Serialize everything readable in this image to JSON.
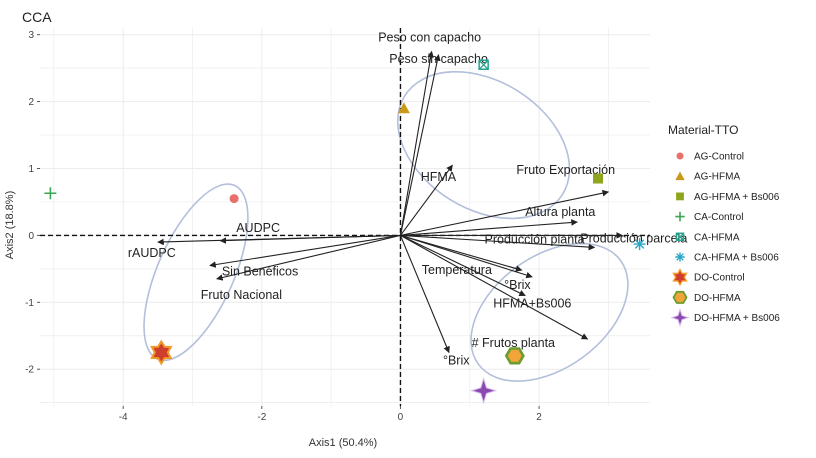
{
  "chart_data": {
    "type": "scatter",
    "title": "CCA",
    "xlabel": "Axis1 (50.4%)",
    "ylabel": "Axis2 (18.8%)",
    "xlim": [
      -5.2,
      3.6
    ],
    "ylim": [
      -2.55,
      3.1
    ],
    "x_ticks": [
      -4,
      -2,
      0,
      2
    ],
    "y_ticks": [
      -2,
      -1,
      0,
      1,
      2,
      3
    ],
    "grid": true,
    "legend_title": "Material-TTO",
    "legend_position": "right",
    "series": [
      {
        "name": "AG-Control",
        "marker": "circle",
        "color": "#e8706a",
        "points": [
          [
            -2.4,
            0.55
          ]
        ]
      },
      {
        "name": "AG-HFMA",
        "marker": "triangle",
        "color": "#c99a1a",
        "points": [
          [
            0.05,
            1.9
          ]
        ]
      },
      {
        "name": "AG-HFMA + Bs006",
        "marker": "square",
        "color": "#8fa61c",
        "points": [
          [
            2.85,
            0.85
          ]
        ]
      },
      {
        "name": "CA-Control",
        "marker": "plus",
        "color": "#3aa552",
        "points": [
          [
            -5.05,
            0.63
          ]
        ]
      },
      {
        "name": "CA-HFMA",
        "marker": "square-cross",
        "color": "#26a38e",
        "points": [
          [
            1.2,
            2.55
          ]
        ]
      },
      {
        "name": "CA-HFMA + Bs006",
        "marker": "asterisk",
        "color": "#2aa8c8",
        "points": [
          [
            3.45,
            -0.13
          ]
        ]
      },
      {
        "name": "DO-Control",
        "marker": "star6",
        "color": "#cf3d2e",
        "points": [
          [
            -3.45,
            -1.75
          ]
        ]
      },
      {
        "name": "DO-HFMA",
        "marker": "hexagon",
        "color": "#6a9d2e",
        "points": [
          [
            1.65,
            -1.8
          ]
        ]
      },
      {
        "name": "DO-HFMA + Bs006",
        "marker": "star4",
        "color": "#8a49b0",
        "points": [
          [
            1.2,
            -2.32
          ]
        ]
      }
    ],
    "arrows": [
      {
        "label": "Peso con capacho",
        "x": 0.45,
        "y": 2.75
      },
      {
        "label": "Peso sin capacho",
        "x": 0.55,
        "y": 2.7
      },
      {
        "label": "HFMA",
        "x": 0.75,
        "y": 1.05
      },
      {
        "label": "Fruto Exportación",
        "x": 3.0,
        "y": 0.65
      },
      {
        "label": "Altura planta",
        "x": 2.55,
        "y": 0.2
      },
      {
        "label": "Producción parcela",
        "x": 3.2,
        "y": 0.0
      },
      {
        "label": "Producción planta",
        "x": 2.8,
        "y": -0.18
      },
      {
        "label": "Temperatura",
        "x": 1.75,
        "y": -0.52
      },
      {
        "label": "°Brix",
        "x": 1.9,
        "y": -0.62
      },
      {
        "label": "HFMA+Bs006",
        "x": 1.8,
        "y": -0.9
      },
      {
        "label": "# Frutos planta",
        "x": 2.7,
        "y": -1.55
      },
      {
        "label": "°Brix",
        "x": 0.7,
        "y": -1.75
      },
      {
        "label": "AUDPC",
        "x": -2.6,
        "y": -0.08
      },
      {
        "label": "rAUDPC",
        "x": -3.5,
        "y": -0.1
      },
      {
        "label": "Sin Benéficos",
        "x": -2.75,
        "y": -0.45
      },
      {
        "label": "Fruto Nacional",
        "x": -2.65,
        "y": -0.65
      }
    ]
  }
}
